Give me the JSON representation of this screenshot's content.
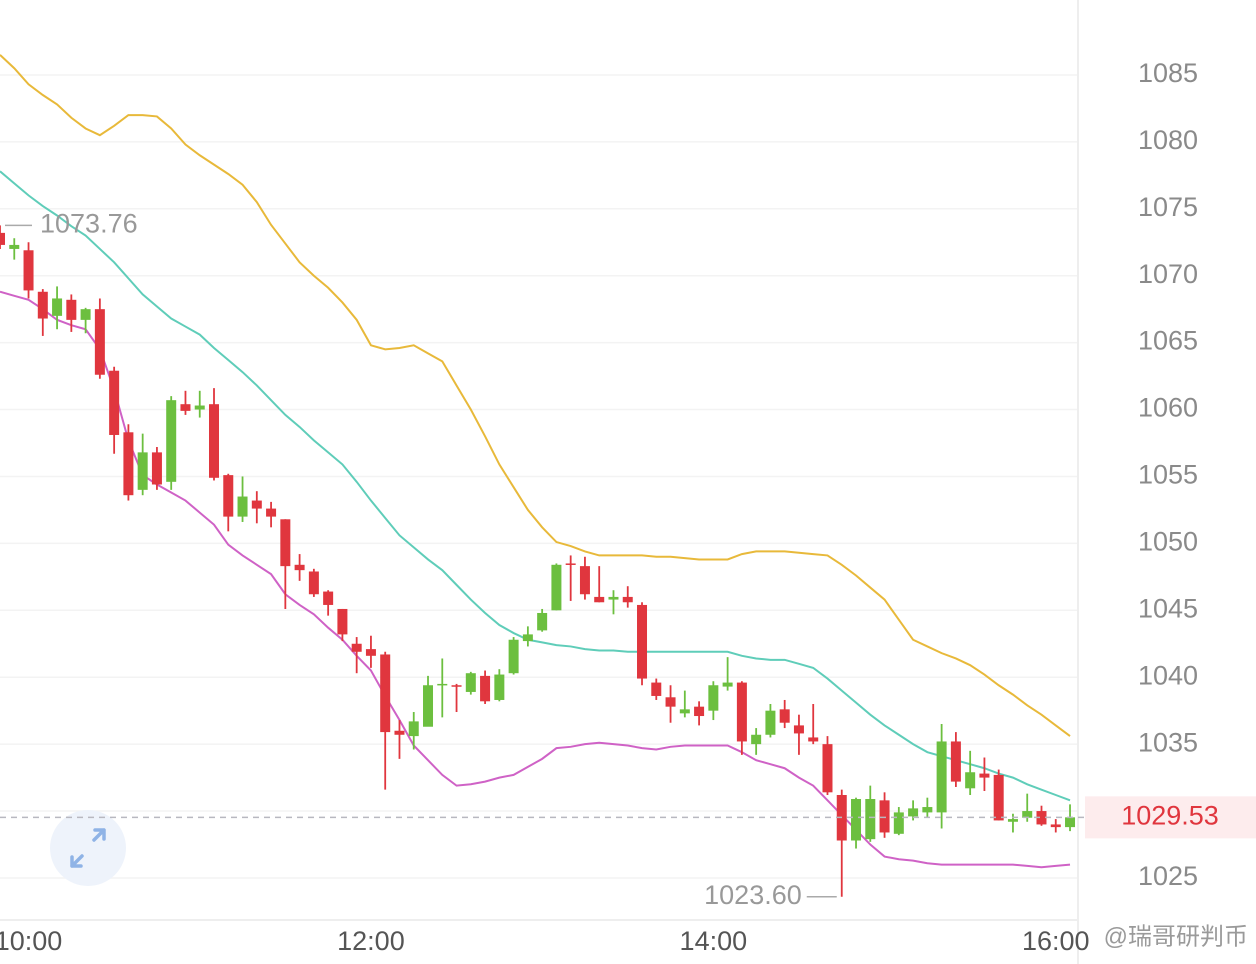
{
  "chart_data": {
    "type": "candlestick",
    "categories": [
      null,
      null,
      "10:00",
      null,
      null,
      null,
      null,
      null,
      null,
      null,
      null,
      null,
      null,
      null,
      null,
      null,
      null,
      null,
      null,
      null,
      null,
      null,
      null,
      null,
      null,
      null,
      "12:00",
      null,
      null,
      null,
      null,
      null,
      null,
      null,
      null,
      null,
      null,
      null,
      null,
      null,
      null,
      null,
      null,
      null,
      null,
      null,
      null,
      null,
      null,
      null,
      "14:00",
      null,
      null,
      null,
      null,
      null,
      null,
      null,
      null,
      null,
      null,
      null,
      null,
      null,
      null,
      null,
      null,
      null,
      null,
      null,
      null,
      null,
      null,
      null,
      "16:00",
      null
    ],
    "open": [
      1073.2,
      1072.0,
      1071.9,
      1068.8,
      1067.0,
      1068.2,
      1066.7,
      1067.5,
      1062.9,
      1058.3,
      1054.0,
      1056.8,
      1054.6,
      1060.4,
      1060.0,
      1060.4,
      1055.1,
      1052.0,
      1053.2,
      1052.6,
      1051.8,
      1048.4,
      1047.9,
      1046.4,
      1045.1,
      1042.5,
      1042.1,
      1041.7,
      1036.0,
      1035.6,
      1036.3,
      1039.4,
      1039.4,
      1038.9,
      1040.1,
      1038.3,
      1040.3,
      1042.7,
      1043.5,
      1045.0,
      1048.5,
      1048.3,
      1046.0,
      1045.8,
      1046.0,
      1045.4,
      1039.6,
      1038.5,
      1037.3,
      1037.8,
      1037.5,
      1039.3,
      1039.6,
      1035.0,
      1035.7,
      1037.6,
      1036.4,
      1035.5,
      1035.0,
      1031.2,
      1027.8,
      1027.9,
      1030.8,
      1028.3,
      1029.6,
      1029.9,
      1029.9,
      1035.2,
      1031.7,
      1032.8,
      1032.7,
      1029.2,
      1029.5,
      1030.0,
      1029.0,
      1028.8
    ],
    "high": [
      1073.76,
      1072.8,
      1072.5,
      1069.0,
      1069.2,
      1068.6,
      1067.6,
      1068.3,
      1063.2,
      1058.9,
      1058.2,
      1057.2,
      1061.0,
      1061.4,
      1061.4,
      1061.6,
      1055.2,
      1055.0,
      1053.9,
      1053.1,
      1051.8,
      1049.2,
      1048.1,
      1046.5,
      1045.1,
      1043.0,
      1043.1,
      1041.9,
      1036.8,
      1037.4,
      1040.1,
      1041.4,
      1039.5,
      1040.4,
      1040.5,
      1040.6,
      1043.0,
      1043.8,
      1045.1,
      1048.5,
      1049.1,
      1049.0,
      1048.3,
      1046.5,
      1046.8,
      1045.6,
      1039.9,
      1039.4,
      1039.0,
      1038.2,
      1039.7,
      1041.5,
      1039.7,
      1036.2,
      1038.0,
      1038.3,
      1037.2,
      1038.0,
      1035.6,
      1031.6,
      1031.0,
      1031.9,
      1031.4,
      1030.3,
      1030.8,
      1031.0,
      1036.5,
      1035.9,
      1034.5,
      1034.0,
      1033.1,
      1029.8,
      1031.3,
      1030.4,
      1029.4,
      1030.5
    ],
    "low": [
      1072.0,
      1071.2,
      1068.3,
      1065.5,
      1066.0,
      1065.8,
      1065.7,
      1062.3,
      1056.7,
      1053.2,
      1053.6,
      1054.0,
      1054.0,
      1059.6,
      1059.4,
      1054.7,
      1050.9,
      1051.6,
      1051.5,
      1051.2,
      1045.1,
      1047.2,
      1046.0,
      1044.6,
      1042.7,
      1040.3,
      1040.7,
      1031.6,
      1033.9,
      1034.6,
      1036.6,
      1037.0,
      1037.4,
      1038.7,
      1038.0,
      1038.2,
      1040.2,
      1042.3,
      1043.4,
      1045.0,
      1045.7,
      1045.8,
      1045.6,
      1044.7,
      1045.2,
      1039.4,
      1038.3,
      1036.6,
      1037.0,
      1036.4,
      1036.8,
      1039.0,
      1034.2,
      1034.2,
      1035.5,
      1036.2,
      1034.2,
      1035.0,
      1031.2,
      1023.6,
      1027.2,
      1027.7,
      1028.0,
      1028.2,
      1029.3,
      1029.5,
      1028.7,
      1031.8,
      1031.2,
      1031.5,
      1029.3,
      1028.4,
      1029.2,
      1028.9,
      1028.4,
      1028.5
    ],
    "close": [
      1072.3,
      1072.3,
      1068.9,
      1066.8,
      1068.3,
      1066.7,
      1067.5,
      1062.6,
      1058.1,
      1053.6,
      1056.8,
      1054.4,
      1060.7,
      1059.9,
      1060.3,
      1054.9,
      1052.0,
      1053.5,
      1052.6,
      1052.0,
      1048.3,
      1048.0,
      1046.2,
      1045.4,
      1043.2,
      1041.9,
      1041.6,
      1035.9,
      1035.7,
      1036.7,
      1039.4,
      1039.5,
      1039.3,
      1040.3,
      1038.2,
      1040.2,
      1042.8,
      1043.2,
      1044.8,
      1048.4,
      1048.4,
      1046.2,
      1045.6,
      1046.0,
      1045.6,
      1039.9,
      1038.6,
      1037.8,
      1037.6,
      1037.1,
      1039.4,
      1039.6,
      1035.2,
      1035.7,
      1037.5,
      1036.6,
      1035.8,
      1035.2,
      1031.4,
      1027.8,
      1030.9,
      1030.9,
      1028.4,
      1029.9,
      1030.2,
      1030.3,
      1035.2,
      1032.2,
      1032.9,
      1032.5,
      1029.3,
      1029.4,
      1030.0,
      1029.0,
      1028.8,
      1029.53
    ],
    "up_color": "#6cbf3f",
    "down_color": "#e0363e",
    "series": [
      {
        "color": "#e8b93a",
        "values": [
          1086.5,
          1085.5,
          1084.3,
          1083.5,
          1082.8,
          1081.8,
          1081.0,
          1080.5,
          1081.2,
          1082.0,
          1082.0,
          1081.9,
          1081.0,
          1079.8,
          1079.0,
          1078.3,
          1077.6,
          1076.8,
          1075.5,
          1073.8,
          1072.4,
          1071.0,
          1070.0,
          1069.1,
          1068.0,
          1066.7,
          1064.8,
          1064.5,
          1064.6,
          1064.8,
          1064.2,
          1063.6,
          1061.8,
          1060.0,
          1058.0,
          1055.9,
          1054.2,
          1052.5,
          1051.2,
          1050.1,
          1049.8,
          1049.4,
          1049.1,
          1049.1,
          1049.1,
          1049.1,
          1049.0,
          1049.0,
          1048.9,
          1048.8,
          1048.8,
          1048.8,
          1049.2,
          1049.4,
          1049.4,
          1049.4,
          1049.3,
          1049.2,
          1049.1,
          1048.4,
          1047.6,
          1046.7,
          1045.8,
          1044.3,
          1042.8,
          1042.3,
          1041.8,
          1041.4,
          1040.9,
          1040.2,
          1039.4,
          1038.7,
          1037.9,
          1037.2,
          1036.4,
          1035.6
        ]
      },
      {
        "color": "#5fcdb9",
        "values": [
          1077.8,
          1076.9,
          1076.0,
          1075.2,
          1074.5,
          1073.7,
          1073.0,
          1072.0,
          1071.0,
          1069.8,
          1068.6,
          1067.7,
          1066.8,
          1066.2,
          1065.6,
          1064.6,
          1063.7,
          1062.8,
          1061.8,
          1060.7,
          1059.6,
          1058.7,
          1057.7,
          1056.8,
          1055.9,
          1054.6,
          1053.2,
          1051.9,
          1050.6,
          1049.7,
          1048.8,
          1048.0,
          1046.9,
          1045.8,
          1044.8,
          1043.9,
          1043.3,
          1042.8,
          1042.6,
          1042.4,
          1042.3,
          1042.1,
          1042.0,
          1042.0,
          1041.9,
          1041.9,
          1041.9,
          1041.9,
          1041.9,
          1041.9,
          1041.9,
          1041.9,
          1041.6,
          1041.4,
          1041.3,
          1041.3,
          1041.0,
          1040.7,
          1039.9,
          1039.0,
          1038.1,
          1037.2,
          1036.4,
          1035.7,
          1035.0,
          1034.4,
          1034.1,
          1033.8,
          1033.5,
          1033.2,
          1032.8,
          1032.5,
          1032.0,
          1031.6,
          1031.2,
          1030.8
        ]
      },
      {
        "color": "#cf62c6",
        "values": [
          1068.8,
          1068.5,
          1068.2,
          1067.5,
          1066.7,
          1066.3,
          1066.0,
          1064.5,
          1061.5,
          1057.7,
          1055.1,
          1054.4,
          1053.8,
          1053.2,
          1052.3,
          1051.4,
          1049.9,
          1049.1,
          1048.4,
          1047.7,
          1046.2,
          1045.4,
          1044.7,
          1043.7,
          1042.8,
          1041.6,
          1040.5,
          1038.6,
          1036.8,
          1034.9,
          1033.8,
          1032.7,
          1031.9,
          1032.0,
          1032.2,
          1032.5,
          1032.7,
          1033.3,
          1033.9,
          1034.7,
          1034.8,
          1035.0,
          1035.1,
          1035.0,
          1034.9,
          1034.7,
          1034.6,
          1034.8,
          1034.9,
          1034.9,
          1034.9,
          1034.9,
          1034.4,
          1033.8,
          1033.5,
          1033.2,
          1032.5,
          1031.9,
          1030.8,
          1029.7,
          1028.6,
          1027.5,
          1026.6,
          1026.4,
          1026.3,
          1026.1,
          1026.0,
          1026.0,
          1026.0,
          1026.0,
          1026.0,
          1026.0,
          1025.9,
          1025.8,
          1025.9,
          1026.0
        ]
      }
    ],
    "ylim": [
      1021.86,
      1090.6
    ],
    "yticks": [
      1025,
      1030,
      1035,
      1040,
      1045,
      1050,
      1055,
      1060,
      1065,
      1070,
      1075,
      1080,
      1085
    ],
    "grid": true,
    "max_label": 1073.76,
    "min_label": {
      "value": 1023.6,
      "label": "1023.60"
    },
    "last_price": 1029.53,
    "watermark": "@瑞哥研判币"
  }
}
